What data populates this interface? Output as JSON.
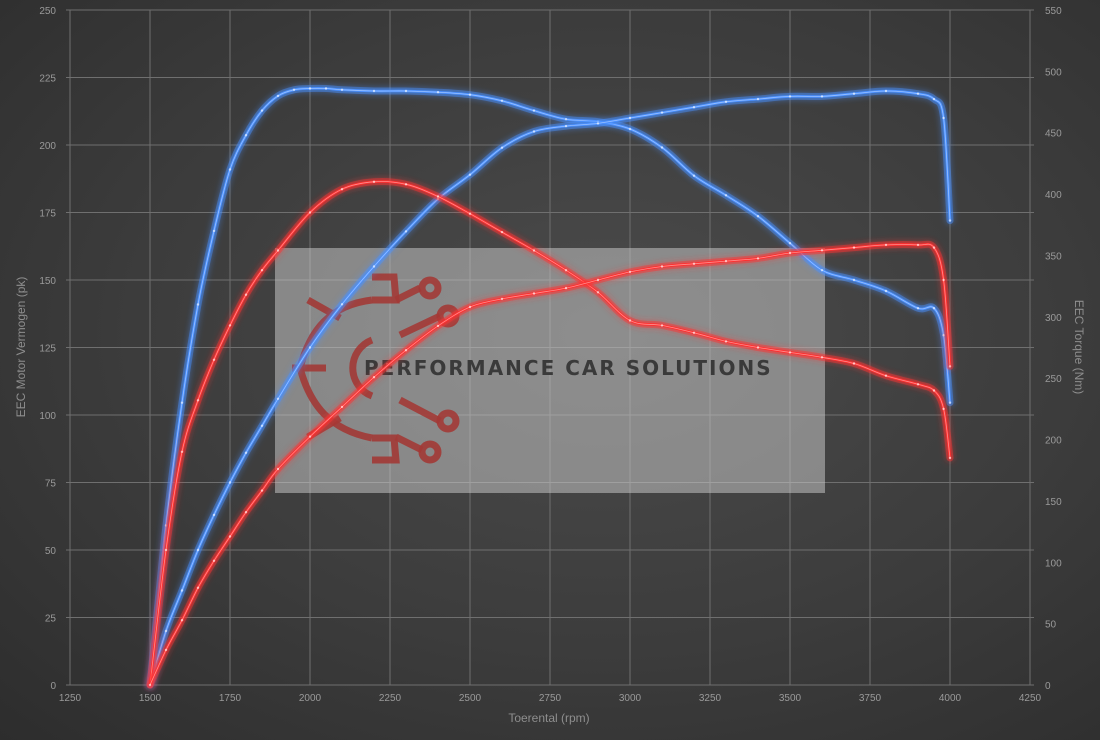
{
  "chart_data": {
    "type": "line",
    "xlabel": "Toerental (rpm)",
    "ylabel_left": "EEC Motor Vermogen (pk)",
    "ylabel_right": "EEC Torque (Nm)",
    "xlim": [
      1250,
      4250
    ],
    "ylim_left": [
      0,
      250
    ],
    "ylim_right": [
      0,
      550
    ],
    "x_ticks": [
      1250,
      1500,
      1750,
      2000,
      2250,
      2500,
      2750,
      3000,
      3250,
      3500,
      3750,
      4000,
      4250
    ],
    "y_ticks_left": [
      0,
      25,
      50,
      75,
      100,
      125,
      150,
      175,
      200,
      225,
      250
    ],
    "y_ticks_right": [
      0,
      50,
      100,
      150,
      200,
      250,
      300,
      350,
      400,
      450,
      500,
      550
    ],
    "grid": true,
    "series": [
      {
        "color": "#4a90ff",
        "axis": "right",
        "x": [
          1500,
          1550,
          1600,
          1650,
          1700,
          1750,
          1800,
          1850,
          1900,
          1950,
          2000,
          2050,
          2100,
          2200,
          2300,
          2400,
          2500,
          2600,
          2700,
          2800,
          2900,
          3000,
          3100,
          3200,
          3300,
          3400,
          3500,
          3600,
          3700,
          3800,
          3900,
          3950,
          3980,
          4000
        ],
        "y": [
          0,
          130,
          230,
          310,
          370,
          420,
          448,
          468,
          480,
          485,
          486,
          486,
          485,
          484,
          484,
          483,
          481,
          476,
          468,
          461,
          459,
          453,
          438,
          415,
          399,
          382,
          360,
          338,
          330,
          321,
          307,
          307,
          285,
          230
        ]
      },
      {
        "color": "#4a90ff",
        "axis": "left",
        "x": [
          1500,
          1550,
          1600,
          1650,
          1700,
          1750,
          1800,
          1850,
          1900,
          2000,
          2100,
          2200,
          2300,
          2400,
          2500,
          2600,
          2700,
          2800,
          2900,
          3000,
          3100,
          3200,
          3300,
          3400,
          3500,
          3600,
          3700,
          3800,
          3900,
          3950,
          3980,
          4000
        ],
        "y": [
          0,
          20,
          35,
          50,
          63,
          75,
          86,
          96,
          106,
          125,
          141,
          155,
          168,
          180,
          189,
          199,
          205,
          207,
          208,
          210,
          212,
          214,
          216,
          217,
          218,
          218,
          219,
          220,
          219,
          217,
          210,
          172
        ]
      },
      {
        "color": "#ff3030",
        "axis": "right",
        "x": [
          1500,
          1550,
          1600,
          1650,
          1700,
          1750,
          1800,
          1850,
          1900,
          2000,
          2100,
          2200,
          2300,
          2400,
          2500,
          2600,
          2700,
          2800,
          2900,
          3000,
          3100,
          3200,
          3300,
          3400,
          3500,
          3600,
          3700,
          3800,
          3900,
          3950,
          3980,
          4000
        ],
        "y": [
          0,
          110,
          190,
          232,
          265,
          293,
          318,
          338,
          354,
          385,
          404,
          410,
          408,
          398,
          384,
          369,
          354,
          338,
          320,
          297,
          293,
          287,
          280,
          275,
          271,
          267,
          262,
          252,
          245,
          240,
          225,
          185
        ]
      },
      {
        "color": "#ff3030",
        "axis": "left",
        "x": [
          1500,
          1550,
          1600,
          1650,
          1700,
          1750,
          1800,
          1850,
          1900,
          2000,
          2100,
          2200,
          2300,
          2400,
          2500,
          2600,
          2700,
          2800,
          2900,
          3000,
          3100,
          3200,
          3300,
          3400,
          3500,
          3600,
          3700,
          3800,
          3900,
          3950,
          3980,
          4000
        ],
        "y": [
          0,
          13,
          24,
          36,
          46,
          55,
          64,
          72,
          80,
          92,
          103,
          114,
          124,
          133,
          140,
          143,
          145,
          147,
          150,
          153,
          155,
          156,
          157,
          158,
          160,
          161,
          162,
          163,
          163,
          162,
          150,
          118
        ]
      }
    ]
  },
  "watermark": {
    "text": "PERFORMANCE CAR SOLUTIONS"
  }
}
